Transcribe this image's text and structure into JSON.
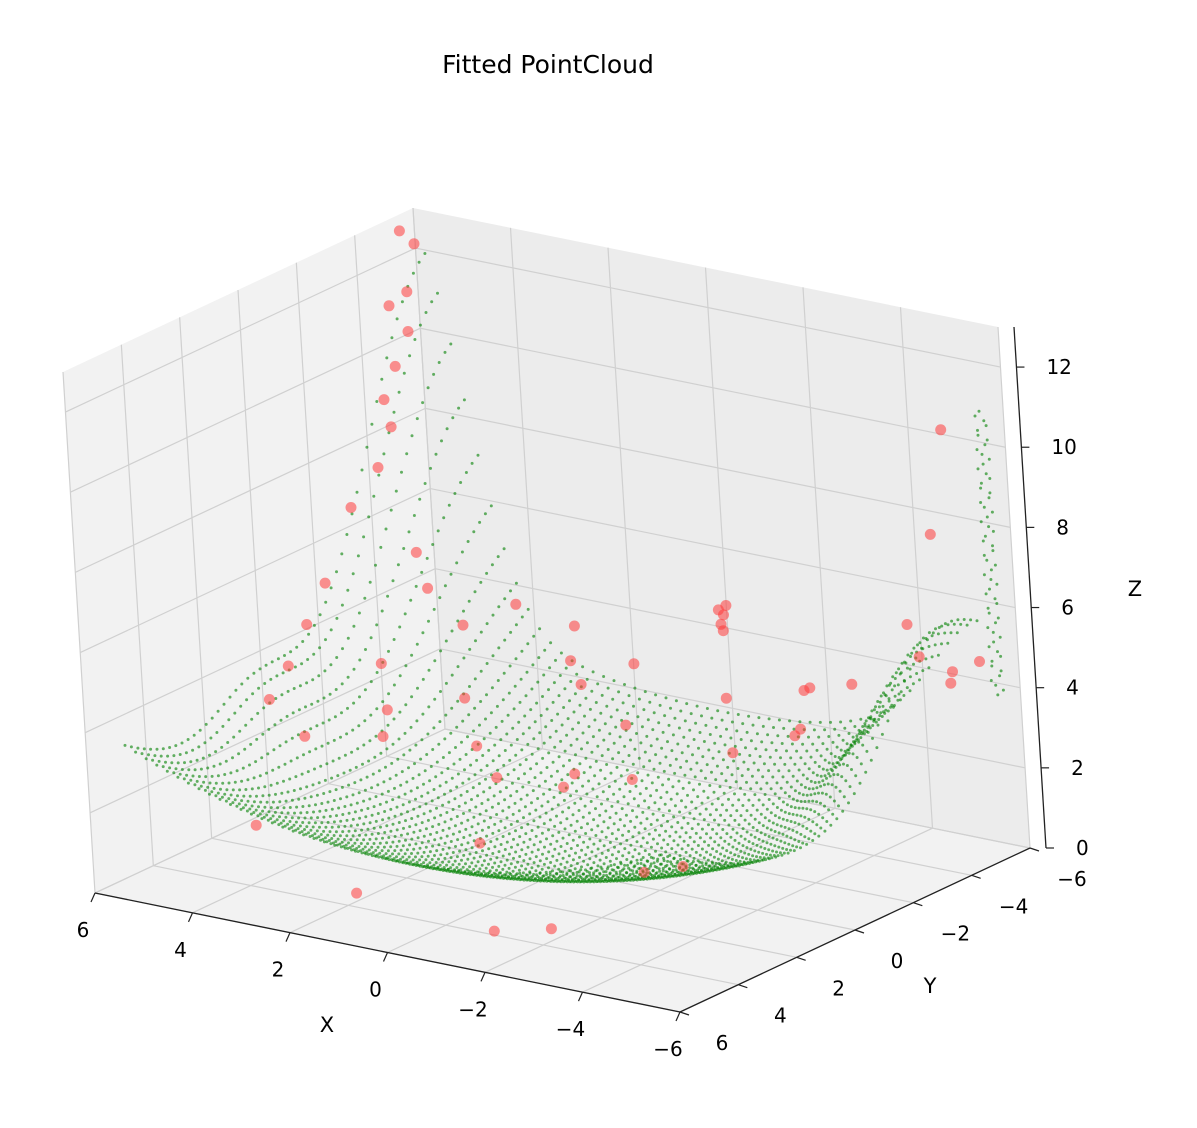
{
  "chart_data": {
    "type": "scatter",
    "projection": "3d",
    "title": "Fitted PointCloud",
    "xlabel": "X",
    "ylabel": "Y",
    "zlabel": "Z",
    "xlim": [
      -6,
      6
    ],
    "ylim": [
      -6,
      6
    ],
    "zlim": [
      0,
      13
    ],
    "grid": true,
    "x_ticks": [
      {
        "value": 6,
        "label": "6"
      },
      {
        "value": 4,
        "label": "4"
      },
      {
        "value": 2,
        "label": "2"
      },
      {
        "value": 0,
        "label": "0"
      },
      {
        "value": -2,
        "label": "−2"
      },
      {
        "value": -4,
        "label": "−4"
      },
      {
        "value": -6,
        "label": "−6"
      }
    ],
    "y_ticks": [
      {
        "value": 6,
        "label": "6"
      },
      {
        "value": 4,
        "label": "4"
      },
      {
        "value": 2,
        "label": "2"
      },
      {
        "value": 0,
        "label": "0"
      },
      {
        "value": -2,
        "label": "−2"
      },
      {
        "value": -4,
        "label": "−4"
      },
      {
        "value": -6,
        "label": "−6"
      }
    ],
    "z_ticks": [
      {
        "value": 0,
        "label": "0"
      },
      {
        "value": 2,
        "label": "2"
      },
      {
        "value": 4,
        "label": "4"
      },
      {
        "value": 6,
        "label": "6"
      },
      {
        "value": 8,
        "label": "8"
      },
      {
        "value": 10,
        "label": "10"
      },
      {
        "value": 12,
        "label": "12"
      }
    ],
    "series": [
      {
        "kind": "fitted-surface-grid",
        "color": "#008000",
        "x_range": [
          -5.5,
          5.5
        ],
        "y_range": [
          -5.5,
          5.5
        ]
      },
      {
        "kind": "observed-points",
        "color": "#ff3b3b",
        "points": [
          [
            -1.0,
            4.0,
            0.1
          ],
          [
            1.5,
            4.5,
            0.6
          ],
          [
            -2.5,
            4.5,
            0.7
          ],
          [
            3.5,
            4.5,
            1.8
          ],
          [
            -4.5,
            4.5,
            2.6
          ],
          [
            -5.0,
            4.0,
            2.7
          ],
          [
            -5.0,
            -2.0,
            5.2
          ],
          [
            -5.5,
            -3.5,
            5.5
          ],
          [
            -5.5,
            -4.5,
            4.5
          ],
          [
            -5.5,
            -5.5,
            4.7
          ],
          [
            -5.6,
            -3.0,
            6.5
          ],
          [
            -5.7,
            -3.8,
            8.5
          ],
          [
            -5.8,
            -4.2,
            11.0
          ],
          [
            -5.0,
            0.0,
            4.6
          ],
          [
            -4.5,
            -1.0,
            4.3
          ],
          [
            -4.0,
            0.5,
            4.1
          ],
          [
            -4.0,
            -2.0,
            4.8
          ],
          [
            -3.5,
            -3.0,
            4.4
          ],
          [
            -3.0,
            -1.0,
            4.7
          ],
          [
            -2.5,
            1.5,
            3.4
          ],
          [
            -2.0,
            3.0,
            3.6
          ],
          [
            -1.5,
            0.0,
            4.0
          ],
          [
            -1.0,
            1.0,
            3.0
          ],
          [
            0.0,
            2.0,
            3.0
          ],
          [
            1.0,
            1.0,
            3.2
          ],
          [
            -0.5,
            3.5,
            2.0
          ],
          [
            2.0,
            2.5,
            3.7
          ],
          [
            3.0,
            3.5,
            3.8
          ],
          [
            4.0,
            3.0,
            4.3
          ],
          [
            4.5,
            1.5,
            4.5
          ],
          [
            5.0,
            0.0,
            4.9
          ],
          [
            5.5,
            -1.5,
            5.3
          ],
          [
            5.8,
            -3.0,
            6.6
          ],
          [
            5.8,
            -4.5,
            8.1
          ],
          [
            6.0,
            -5.0,
            10.9
          ],
          [
            6.0,
            -5.5,
            12.6
          ],
          [
            5.9,
            -5.8,
            12.2
          ],
          [
            5.8,
            -5.3,
            11.2
          ],
          [
            5.7,
            -4.6,
            9.6
          ],
          [
            5.6,
            -4.0,
            9.0
          ],
          [
            5.7,
            -5.1,
            10.3
          ],
          [
            5.5,
            -3.5,
            7.5
          ],
          [
            4.5,
            -3.0,
            5.8
          ],
          [
            4.0,
            -2.5,
            5.2
          ],
          [
            3.0,
            -2.0,
            4.7
          ],
          [
            2.5,
            -3.0,
            5.0
          ],
          [
            1.0,
            -2.5,
            5.0
          ],
          [
            0.5,
            -1.5,
            4.6
          ],
          [
            0.0,
            -1.0,
            4.3
          ],
          [
            -0.5,
            -2.0,
            4.6
          ],
          [
            1.5,
            0.5,
            4.1
          ],
          [
            3.5,
            0.0,
            4.3
          ],
          [
            2.5,
            1.5,
            3.9
          ],
          [
            -1.8,
            -2.9,
            5.6
          ],
          [
            -1.8,
            -3.0,
            5.8
          ],
          [
            -1.8,
            -3.1,
            6.0
          ],
          [
            -1.7,
            -3.0,
            5.9
          ],
          [
            -1.9,
            -2.8,
            5.5
          ],
          [
            -5.3,
            -4.9,
            4.6
          ]
        ]
      }
    ]
  }
}
